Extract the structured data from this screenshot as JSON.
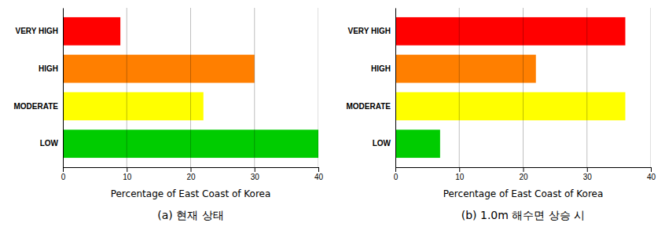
{
  "chart_data": [
    {
      "type": "bar",
      "orientation": "horizontal",
      "title": "(a)  현재 상태",
      "categories": [
        "LOW",
        "MODERATE",
        "HIGH",
        "VERY HIGH"
      ],
      "values": [
        40,
        22,
        30,
        9
      ],
      "colors": [
        "#00cc00",
        "#ffff00",
        "#ff7f00",
        "#ff0000"
      ],
      "xlim": [
        0,
        40
      ],
      "xticks": [
        0,
        10,
        20,
        30,
        40
      ],
      "xlabel": "Percentage of East Coast of Korea",
      "grid": true
    },
    {
      "type": "bar",
      "orientation": "horizontal",
      "title": "(b)  1.0m 해수면 상승 시",
      "categories": [
        "LOW",
        "MODERATE",
        "HIGH",
        "VERY HIGH"
      ],
      "values": [
        7,
        36,
        22,
        36
      ],
      "colors": [
        "#00cc00",
        "#ffff00",
        "#ff7f00",
        "#ff0000"
      ],
      "xlim": [
        0,
        40
      ],
      "xticks": [
        0,
        10,
        20,
        30,
        40
      ],
      "xlabel": "Percentage of East Coast of Korea",
      "grid": true
    }
  ]
}
